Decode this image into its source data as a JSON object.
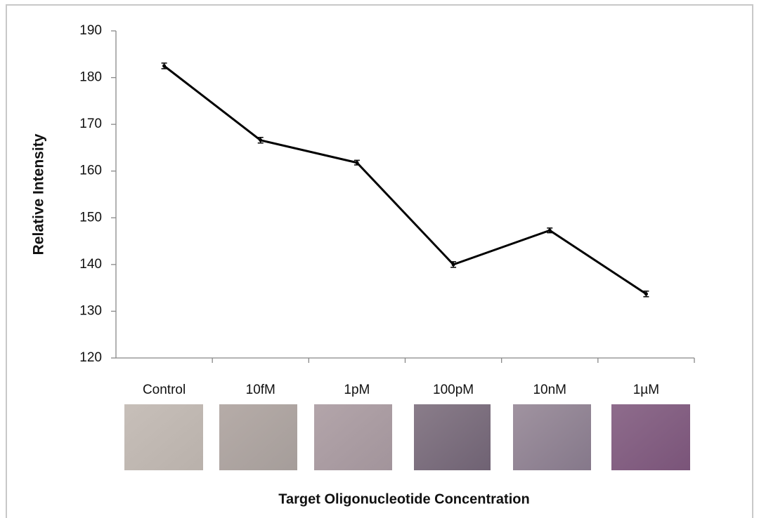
{
  "chart_data": {
    "type": "line",
    "y_label": "Relative Intensity",
    "x_label": "Target Oligonucleotide Concentration",
    "categories": [
      "Control",
      "10fM",
      "1pM",
      "100pM",
      "10nM",
      "1µM"
    ],
    "values": [
      182.5,
      166.6,
      161.8,
      140.0,
      147.3,
      133.7
    ],
    "errors": [
      0.6,
      0.6,
      0.5,
      0.6,
      0.5,
      0.6
    ],
    "color": "#000000",
    "ylim": [
      120,
      190
    ],
    "yticks": [
      120,
      130,
      140,
      150,
      160,
      170,
      180,
      190
    ]
  }
}
